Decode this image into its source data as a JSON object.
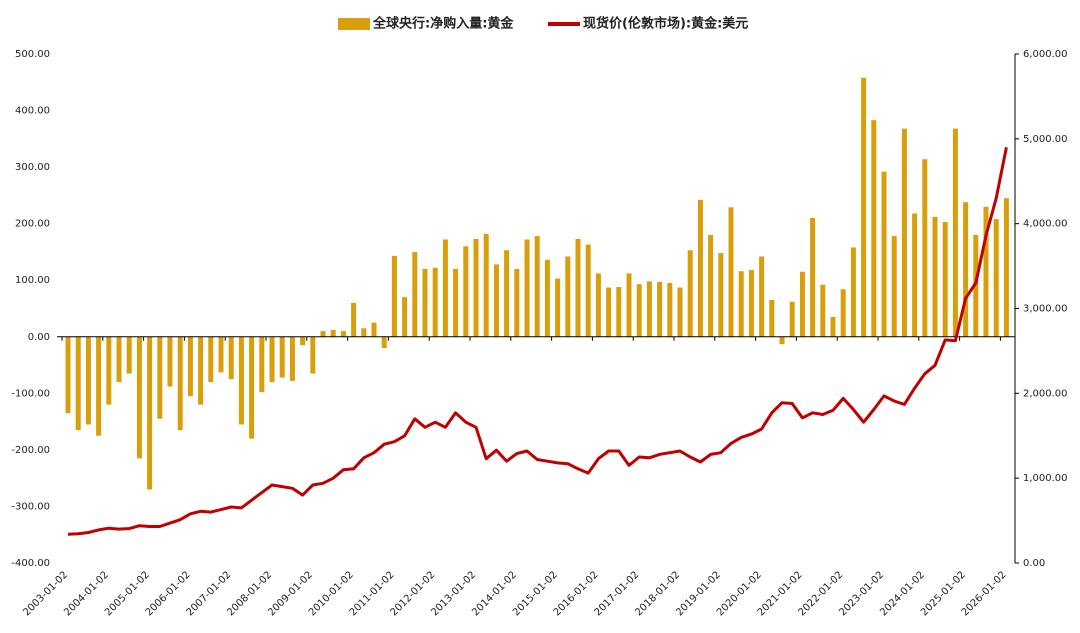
{
  "chart_data": {
    "type": "bar",
    "categories": [
      "2003-01-02",
      null,
      null,
      null,
      "2004-01-02",
      null,
      null,
      null,
      "2005-01-02",
      null,
      null,
      null,
      "2006-01-02",
      null,
      null,
      null,
      "2007-01-02",
      null,
      null,
      null,
      "2008-01-02",
      null,
      null,
      null,
      "2009-01-02",
      null,
      null,
      null,
      "2010-01-02",
      null,
      null,
      null,
      "2011-01-02",
      null,
      null,
      null,
      "2012-01-02",
      null,
      null,
      null,
      "2013-01-02",
      null,
      null,
      null,
      "2014-01-02",
      null,
      null,
      null,
      "2015-01-02",
      null,
      null,
      null,
      "2016-01-02",
      null,
      null,
      null,
      "2017-01-02",
      null,
      null,
      null,
      "2018-01-02",
      null,
      null,
      null,
      "2019-01-02",
      null,
      null,
      null,
      "2020-01-02",
      null,
      null,
      null,
      "2021-01-02",
      null,
      null,
      null,
      "2022-01-02",
      null,
      null,
      null,
      "2023-01-02",
      null,
      null,
      null,
      "2024-01-02",
      null,
      null,
      null,
      "2025-01-02",
      null,
      null,
      null,
      "2026-01-02"
    ],
    "series": [
      {
        "name": "全球央行:净购入量:黄金",
        "color": "#d99e0b",
        "type": "bar",
        "values": [
          -135,
          -165,
          -155,
          -175,
          -120,
          -80,
          -65,
          -215,
          -270,
          -145,
          -88,
          -165,
          -105,
          -120,
          -80,
          -63,
          -75,
          -155,
          -180,
          -98,
          -80,
          -72,
          -78,
          -15,
          -65,
          10,
          12,
          10,
          60,
          15,
          25,
          -20,
          143,
          70,
          150,
          120,
          122,
          172,
          120,
          160,
          173,
          182,
          128,
          153,
          120,
          172,
          178,
          136,
          103,
          142,
          173,
          163,
          112,
          87,
          88,
          112,
          93,
          98,
          97,
          95,
          87,
          153,
          242,
          180,
          148,
          229,
          116,
          118,
          142,
          65,
          -13,
          62,
          115,
          210,
          92,
          35,
          84,
          158,
          458,
          383,
          292,
          178,
          368,
          218,
          314,
          212,
          203,
          368,
          238,
          180,
          230,
          208,
          245
        ]
      },
      {
        "name": "现货价(伦敦市场):黄金:美元",
        "color": "#c00000",
        "type": "line",
        "axis": "y2",
        "values": [
          340,
          345,
          360,
          390,
          410,
          400,
          405,
          440,
          430,
          430,
          470,
          510,
          580,
          610,
          600,
          630,
          660,
          650,
          740,
          830,
          920,
          900,
          880,
          800,
          920,
          940,
          1000,
          1100,
          1110,
          1240,
          1300,
          1400,
          1430,
          1500,
          1700,
          1600,
          1660,
          1600,
          1770,
          1660,
          1600,
          1230,
          1330,
          1200,
          1290,
          1320,
          1220,
          1200,
          1180,
          1170,
          1110,
          1060,
          1230,
          1320,
          1320,
          1150,
          1250,
          1240,
          1280,
          1300,
          1320,
          1250,
          1190,
          1280,
          1300,
          1410,
          1480,
          1520,
          1580,
          1770,
          1890,
          1880,
          1710,
          1770,
          1750,
          1800,
          1940,
          1810,
          1660,
          1810,
          1970,
          1910,
          1870,
          2060,
          2230,
          2330,
          2630,
          2620,
          3120,
          3300,
          3860,
          4300,
          4900
        ]
      }
    ],
    "ylim": [
      -400,
      500
    ],
    "yticks": [
      {
        "value": 500,
        "label": "500.00"
      },
      {
        "value": 400,
        "label": "400.00"
      },
      {
        "value": 300,
        "label": "300.00"
      },
      {
        "value": 200,
        "label": "200.00"
      },
      {
        "value": 100,
        "label": "100.00"
      },
      {
        "value": 0,
        "label": "0.00"
      },
      {
        "value": -100,
        "label": "-100.00"
      },
      {
        "value": -200,
        "label": "-200.00"
      },
      {
        "value": -300,
        "label": "-300.00"
      },
      {
        "value": -400,
        "label": "-400.00"
      }
    ],
    "y2lim": [
      0,
      6000
    ],
    "y2ticks": [
      {
        "value": 0,
        "label": "0.00"
      },
      {
        "value": 1000,
        "label": "1,000.00"
      },
      {
        "value": 2000,
        "label": "2,000.00"
      },
      {
        "value": 3000,
        "label": "3,000.00"
      },
      {
        "value": 4000,
        "label": "4,000.00"
      },
      {
        "value": 5000,
        "label": "5,000.00"
      },
      {
        "value": 6000,
        "label": "6,000.00"
      }
    ],
    "legend": "top"
  }
}
